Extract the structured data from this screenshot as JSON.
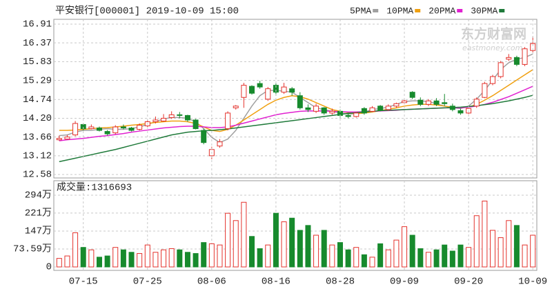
{
  "chart_data": [
    {
      "type": "candlestick",
      "title": "平安银行[000001] 2019-10-09 15:00",
      "watermark": [
        "东方财富网",
        "eastmoney.com"
      ],
      "categories": [
        null,
        null,
        null,
        "07-15",
        null,
        null,
        null,
        null,
        null,
        null,
        null,
        "07-25",
        null,
        null,
        null,
        null,
        null,
        null,
        null,
        "08-06",
        null,
        null,
        null,
        null,
        null,
        null,
        null,
        "08-16",
        null,
        null,
        null,
        null,
        null,
        null,
        null,
        "08-28",
        null,
        null,
        null,
        null,
        null,
        null,
        null,
        "09-09",
        null,
        null,
        null,
        null,
        null,
        null,
        null,
        "09-20",
        null,
        null,
        null,
        null,
        null,
        null,
        null,
        "10-09"
      ],
      "open": [
        13.58,
        13.6,
        13.72,
        14.02,
        13.9,
        13.92,
        13.82,
        13.78,
        13.95,
        13.92,
        13.88,
        13.98,
        14.1,
        14.12,
        14.22,
        14.3,
        14.28,
        14.15,
        13.85,
        13.12,
        13.4,
        13.9,
        14.5,
        14.8,
        15.12,
        15.2,
        14.75,
        15.15,
        14.95,
        15.05,
        14.85,
        14.5,
        14.4,
        14.5,
        14.35,
        14.4,
        14.28,
        14.25,
        14.48,
        14.4,
        14.55,
        14.45,
        14.55,
        14.65,
        14.95,
        14.72,
        14.6,
        14.7,
        14.65,
        14.55,
        14.42,
        14.35,
        14.55,
        14.8,
        15.2,
        15.4,
        15.9,
        15.95,
        15.75,
        16.15
      ],
      "high": [
        13.7,
        13.72,
        14.12,
        14.05,
        14.02,
        13.96,
        13.86,
        14.0,
        14.02,
        13.95,
        14.05,
        14.15,
        14.25,
        14.32,
        14.4,
        14.38,
        14.3,
        14.18,
        13.9,
        13.38,
        13.6,
        14.4,
        14.58,
        15.22,
        15.15,
        15.28,
        15.1,
        15.2,
        15.22,
        15.1,
        14.95,
        14.6,
        14.62,
        14.52,
        14.48,
        14.45,
        14.36,
        14.38,
        14.52,
        14.55,
        14.58,
        14.6,
        14.65,
        14.75,
        14.98,
        14.8,
        14.75,
        14.78,
        14.9,
        14.62,
        14.48,
        14.5,
        14.8,
        15.25,
        15.45,
        15.85,
        16.05,
        16.0,
        16.25,
        16.55
      ],
      "low": [
        13.55,
        13.58,
        13.68,
        13.85,
        13.88,
        13.82,
        13.7,
        13.74,
        13.88,
        13.82,
        13.85,
        13.95,
        14.05,
        14.1,
        14.18,
        14.2,
        14.1,
        13.88,
        13.45,
        13.02,
        13.35,
        13.85,
        14.45,
        14.5,
        14.88,
        15.05,
        14.7,
        14.85,
        14.9,
        14.85,
        14.45,
        14.38,
        14.35,
        14.3,
        14.3,
        14.22,
        14.2,
        14.22,
        14.3,
        14.38,
        14.4,
        14.42,
        14.5,
        14.6,
        14.75,
        14.55,
        14.55,
        14.55,
        14.55,
        14.4,
        14.3,
        14.32,
        14.5,
        14.78,
        15.15,
        15.35,
        15.85,
        15.7,
        15.7,
        16.1
      ],
      "close": [
        13.62,
        13.66,
        14.05,
        13.9,
        13.95,
        13.85,
        13.75,
        13.95,
        13.92,
        13.85,
        14.0,
        14.1,
        14.15,
        14.2,
        14.3,
        14.28,
        14.15,
        13.9,
        13.5,
        13.3,
        13.52,
        14.35,
        14.55,
        15.15,
        14.92,
        15.1,
        15.05,
        14.95,
        15.1,
        14.95,
        14.5,
        14.45,
        14.55,
        14.35,
        14.4,
        14.28,
        14.25,
        14.35,
        14.35,
        14.5,
        14.42,
        14.55,
        14.62,
        14.7,
        14.8,
        14.6,
        14.7,
        14.6,
        14.62,
        14.45,
        14.35,
        14.48,
        14.75,
        15.2,
        15.4,
        15.8,
        15.95,
        15.75,
        16.2,
        16.35
      ],
      "series": [
        {
          "name": "5PMA",
          "color": "#a0a0a0",
          "values": [
            13.7,
            13.72,
            13.8,
            13.85,
            13.85,
            13.88,
            13.9,
            13.88,
            13.88,
            13.9,
            13.95,
            14.02,
            14.1,
            14.18,
            14.22,
            14.22,
            14.2,
            14.1,
            13.9,
            13.65,
            13.5,
            13.6,
            13.85,
            14.2,
            14.55,
            14.85,
            15.0,
            15.0,
            14.98,
            14.95,
            14.8,
            14.65,
            14.5,
            14.45,
            14.4,
            14.35,
            14.32,
            14.33,
            14.38,
            14.45,
            14.48,
            14.52,
            14.6,
            14.68,
            14.7,
            14.7,
            14.68,
            14.62,
            14.55,
            14.5,
            14.48,
            14.55,
            14.75,
            15.0,
            15.3,
            15.6,
            15.8,
            15.9,
            15.95,
            16.05
          ]
        },
        {
          "name": "10PMA",
          "color": "#f0a010",
          "values": [
            13.85,
            13.85,
            13.86,
            13.88,
            13.9,
            13.92,
            13.93,
            13.95,
            13.97,
            14.0,
            14.02,
            14.05,
            14.08,
            14.1,
            14.12,
            14.12,
            14.1,
            14.05,
            13.95,
            13.85,
            13.82,
            13.88,
            14.0,
            14.15,
            14.3,
            14.45,
            14.6,
            14.72,
            14.8,
            14.85,
            14.82,
            14.75,
            14.65,
            14.55,
            14.45,
            14.4,
            14.36,
            14.33,
            14.35,
            14.38,
            14.42,
            14.46,
            14.5,
            14.55,
            14.58,
            14.6,
            14.6,
            14.58,
            14.55,
            14.52,
            14.5,
            14.52,
            14.6,
            14.72,
            14.85,
            15.0,
            15.15,
            15.3,
            15.45,
            15.6
          ]
        },
        {
          "name": "20PMA",
          "color": "#e020d0",
          "values": [
            13.55,
            13.58,
            13.6,
            13.62,
            13.65,
            13.68,
            13.7,
            13.73,
            13.76,
            13.8,
            13.83,
            13.86,
            13.89,
            13.92,
            13.94,
            13.96,
            13.97,
            13.97,
            13.95,
            13.93,
            13.93,
            13.95,
            14.0,
            14.06,
            14.12,
            14.18,
            14.24,
            14.3,
            14.34,
            14.37,
            14.4,
            14.41,
            14.41,
            14.41,
            14.4,
            14.39,
            14.38,
            14.38,
            14.39,
            14.4,
            14.41,
            14.42,
            14.43,
            14.45,
            14.46,
            14.47,
            14.48,
            14.49,
            14.5,
            14.5,
            14.5,
            14.52,
            14.55,
            14.6,
            14.66,
            14.74,
            14.82,
            14.92,
            15.02,
            15.12
          ]
        },
        {
          "name": "30PMA",
          "color": "#1f7a3a",
          "values": [
            12.95,
            13.0,
            13.05,
            13.1,
            13.15,
            13.2,
            13.25,
            13.3,
            13.36,
            13.42,
            13.48,
            13.54,
            13.6,
            13.66,
            13.72,
            13.76,
            13.8,
            13.82,
            13.84,
            13.85,
            13.87,
            13.89,
            13.92,
            13.95,
            13.98,
            14.01,
            14.04,
            14.07,
            14.1,
            14.13,
            14.16,
            14.19,
            14.22,
            14.25,
            14.28,
            14.31,
            14.34,
            14.36,
            14.38,
            14.4,
            14.42,
            14.43,
            14.44,
            14.45,
            14.46,
            14.47,
            14.48,
            14.49,
            14.5,
            14.51,
            14.52,
            14.54,
            14.56,
            14.59,
            14.62,
            14.66,
            14.7,
            14.75,
            14.8,
            14.86
          ]
        }
      ],
      "up_color": "#e4312b",
      "down_color": "#178a2d",
      "ylim": [
        12.58,
        16.91
      ],
      "yticks": [
        12.58,
        13.12,
        13.66,
        {
          "value": 14.2,
          "label": "14.20"
        },
        14.74,
        15.29,
        15.83,
        16.37,
        16.91
      ],
      "grid": true
    },
    {
      "type": "bar",
      "title": "成交量:1316693",
      "values": [
        35,
        45,
        140,
        80,
        70,
        40,
        45,
        80,
        70,
        60,
        55,
        90,
        60,
        70,
        75,
        70,
        60,
        55,
        100,
        95,
        90,
        220,
        190,
        265,
        125,
        75,
        90,
        220,
        185,
        200,
        150,
        170,
        130,
        150,
        90,
        100,
        70,
        80,
        50,
        40,
        95,
        70,
        110,
        165,
        130,
        75,
        60,
        70,
        90,
        65,
        90,
        80,
        210,
        270,
        150,
        120,
        190,
        170,
        90,
        130
      ],
      "ylim": [
        0,
        294
      ],
      "yticks": [
        0,
        {
          "value": 73.59,
          "label": "73.59万"
        },
        {
          "value": 147,
          "label": "147万"
        },
        {
          "value": 221,
          "label": "221万"
        },
        {
          "value": 294,
          "label": "294万"
        }
      ],
      "grid": true
    }
  ]
}
